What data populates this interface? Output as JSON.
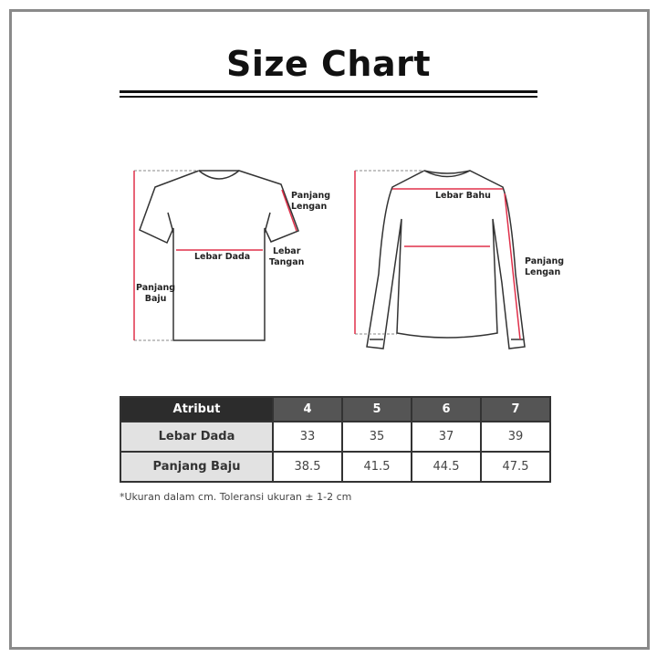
{
  "title": "Size Chart",
  "diagram_labels": {
    "tshirt": {
      "panjang_lengan": [
        "Panjang",
        "Lengan"
      ],
      "lebar_dada": "Lebar Dada",
      "lebar_tangan": [
        "Lebar",
        "Tangan"
      ],
      "panjang_baju": [
        "Panjang",
        "Baju"
      ]
    },
    "longsleeve": {
      "lebar_bahu": "Lebar Bahu",
      "panjang_lengan": [
        "Panjang",
        "Lengan"
      ]
    }
  },
  "colors": {
    "measure_line": "#e0304a",
    "header_dark": "#2c2c2c",
    "header": "#555555",
    "attr_bg": "#e2e2e2"
  },
  "table": {
    "headers": [
      "Atribut",
      "4",
      "5",
      "6",
      "7"
    ],
    "rows": [
      {
        "label": "Lebar Dada",
        "values": [
          "33",
          "35",
          "37",
          "39"
        ]
      },
      {
        "label": "Panjang Baju",
        "values": [
          "38.5",
          "41.5",
          "44.5",
          "47.5"
        ]
      }
    ]
  },
  "note": "*Ukuran dalam cm. Toleransi ukuran ± 1-2 cm"
}
